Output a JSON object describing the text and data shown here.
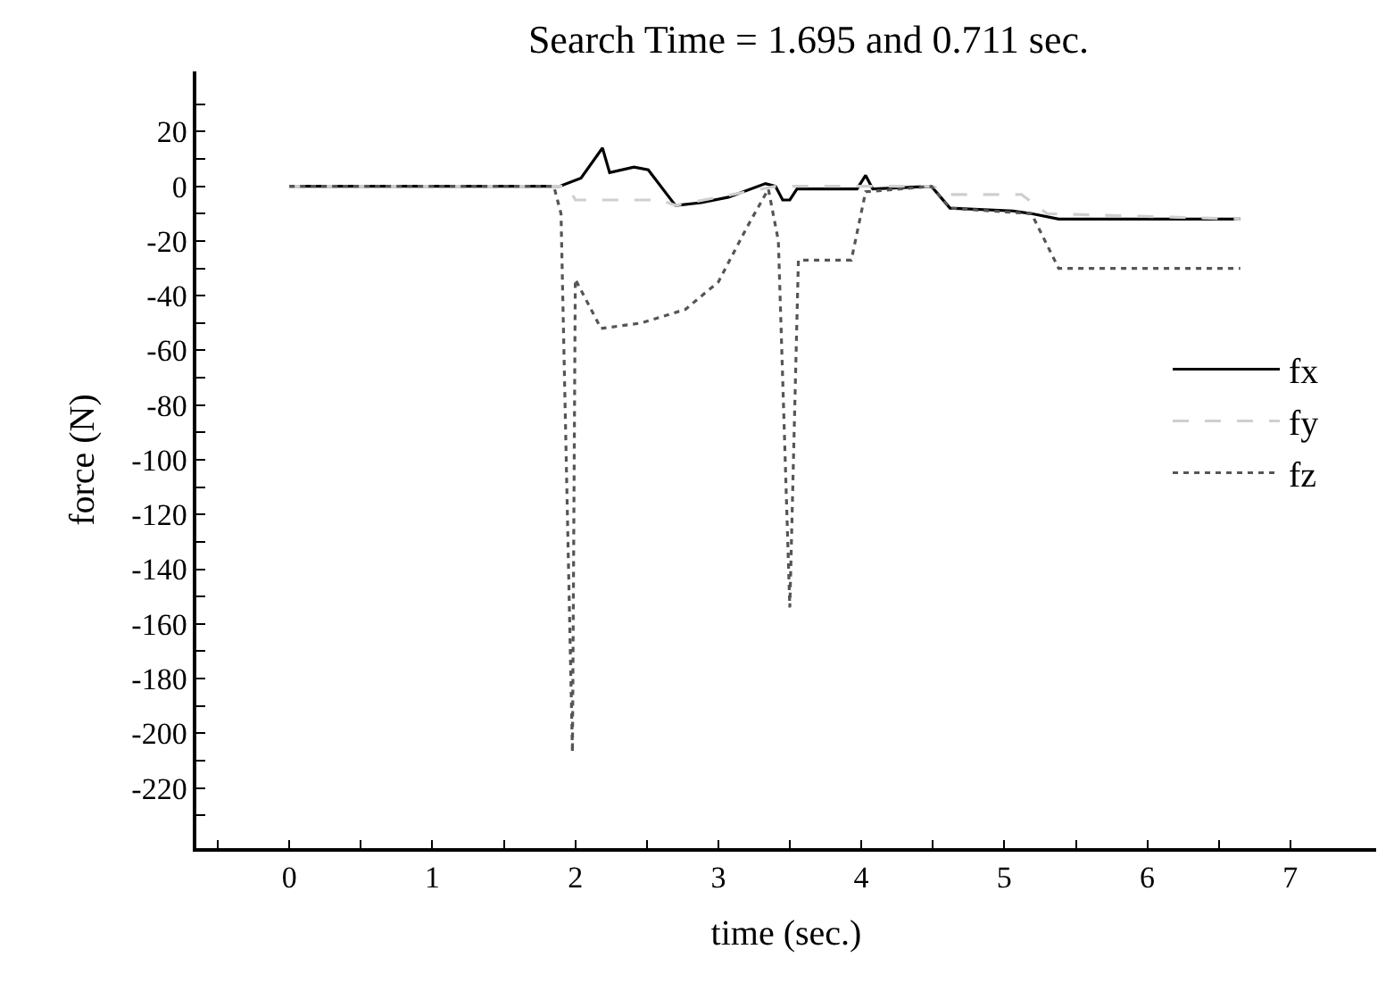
{
  "chart_data": {
    "type": "line",
    "title": "Search Time = 1.695 and 0.711 sec.",
    "xlabel": "time (sec.)",
    "ylabel": "force (N)",
    "xlim": [
      -0.65,
      7.6
    ],
    "ylim": [
      -242,
      42
    ],
    "xticks": [
      {
        "value": -0.5,
        "label": null
      },
      0,
      {
        "value": 0.5,
        "label": null
      },
      1,
      {
        "value": 1.5,
        "label": null
      },
      2,
      {
        "value": 2.5,
        "label": null
      },
      3,
      {
        "value": 3.5,
        "label": null
      },
      4,
      {
        "value": 4.5,
        "label": null
      },
      5,
      {
        "value": 5.5,
        "label": null
      },
      6,
      {
        "value": 6.5,
        "label": null
      },
      7
    ],
    "yticks": [
      {
        "value": -230,
        "label": null
      },
      -220,
      {
        "value": -210,
        "label": null
      },
      -200,
      {
        "value": -190,
        "label": null
      },
      -180,
      {
        "value": -170,
        "label": null
      },
      -160,
      {
        "value": -150,
        "label": null
      },
      -140,
      {
        "value": -130,
        "label": null
      },
      -120,
      {
        "value": -110,
        "label": null
      },
      -100,
      {
        "value": -90,
        "label": null
      },
      -80,
      {
        "value": -70,
        "label": null
      },
      -60,
      {
        "value": -50,
        "label": null
      },
      -40,
      {
        "value": -30,
        "label": null
      },
      -20,
      {
        "value": -10,
        "label": null
      },
      0,
      {
        "value": 10,
        "label": null
      },
      20,
      {
        "value": 30,
        "label": null
      }
    ],
    "legend": "right",
    "marker": "none",
    "series": [
      {
        "name": "fx",
        "color": "#000000",
        "line_style": "solid",
        "x": [
          0,
          1.89,
          2.04,
          2.19,
          2.24,
          2.41,
          2.51,
          2.7,
          2.88,
          3.07,
          3.33,
          3.4,
          3.45,
          3.5,
          3.55,
          3.97,
          4.03,
          4.08,
          4.49,
          4.62,
          5.06,
          5.19,
          5.38,
          6.65
        ],
        "values": [
          0,
          0,
          3,
          14,
          5,
          7,
          6,
          -7,
          -6,
          -4,
          1,
          0,
          -5,
          -5,
          -1,
          -1,
          4,
          -1,
          0,
          -8,
          -9,
          -10,
          -12,
          -12
        ]
      },
      {
        "name": "fy",
        "color": "#cfcfcf",
        "line_style": "dashed",
        "x": [
          0,
          1.95,
          2.0,
          2.6,
          2.7,
          3.3,
          3.4,
          4.5,
          4.62,
          5.12,
          5.3,
          6.65
        ],
        "values": [
          0,
          0,
          -5,
          -5,
          -7,
          -1,
          0,
          0,
          -3,
          -3,
          -10,
          -12
        ]
      },
      {
        "name": "fz",
        "color": "#555555",
        "line_style": "dotted",
        "x": [
          0,
          1.85,
          1.9,
          1.98,
          2.0,
          2.18,
          2.46,
          2.77,
          3.0,
          3.2,
          3.35,
          3.42,
          3.5,
          3.56,
          3.93,
          4.03,
          4.49,
          4.62,
          5.19,
          5.38,
          6.65
        ],
        "values": [
          0,
          0,
          -10,
          -207,
          -34,
          -52,
          -50,
          -45,
          -35,
          -15,
          -1,
          -20,
          -154,
          -27,
          -27,
          -2,
          0,
          -8,
          -10,
          -30,
          -30
        ]
      }
    ]
  }
}
